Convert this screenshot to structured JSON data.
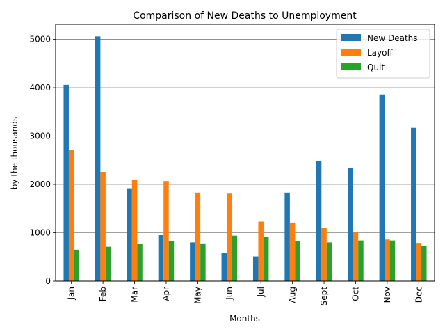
{
  "chart_data": {
    "type": "bar",
    "title": "Comparison of New Deaths to Unemployment",
    "xlabel": "Months",
    "ylabel": "by the thousands",
    "categories": [
      "Jan",
      "Feb",
      "Mar",
      "Apr",
      "May",
      "Jun",
      "Jul",
      "Aug",
      "Sept",
      "Oct",
      "Nov",
      "Dec"
    ],
    "series": [
      {
        "name": "New Deaths",
        "color": "#1f77b4",
        "values": [
          4060,
          5060,
          1920,
          950,
          800,
          590,
          510,
          1830,
          2490,
          2340,
          3860,
          3170
        ]
      },
      {
        "name": "Layoff",
        "color": "#ff7f0e",
        "values": [
          2710,
          2260,
          2090,
          2070,
          1830,
          1810,
          1230,
          1210,
          1100,
          1020,
          860,
          790
        ]
      },
      {
        "name": "Quit",
        "color": "#2ca02c",
        "values": [
          650,
          710,
          770,
          820,
          780,
          940,
          920,
          820,
          800,
          840,
          840,
          720
        ]
      }
    ],
    "ylim": [
      0,
      5310
    ],
    "yticks": [
      0,
      1000,
      2000,
      3000,
      4000,
      5000
    ],
    "grid": "y",
    "legend_position": "upper right"
  }
}
